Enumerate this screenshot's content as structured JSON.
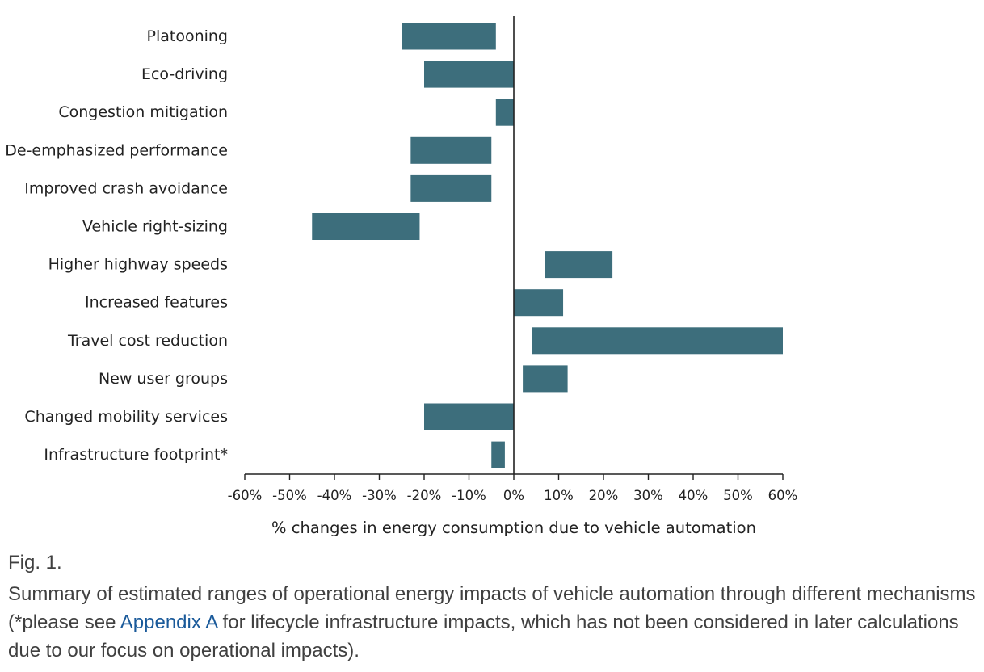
{
  "chart_data": {
    "type": "floating-bar",
    "orientation": "horizontal",
    "categories": [
      "Platooning",
      "Eco-driving",
      "Congestion mitigation",
      "De-emphasized performance",
      "Improved crash avoidance",
      "Vehicle right-sizing",
      "Higher highway speeds",
      "Increased features",
      "Travel cost reduction",
      "New user groups",
      "Changed mobility services",
      "Infrastructure  footprint*"
    ],
    "ranges": [
      [
        -25,
        -4
      ],
      [
        -20,
        0
      ],
      [
        -4,
        0
      ],
      [
        -23,
        -5
      ],
      [
        -23,
        -5
      ],
      [
        -45,
        -21
      ],
      [
        7,
        22
      ],
      [
        0,
        11
      ],
      [
        4,
        60
      ],
      [
        2,
        12
      ],
      [
        -20,
        0
      ],
      [
        -5,
        -2
      ]
    ],
    "xlim": [
      -60,
      60
    ],
    "xticks": [
      -60,
      -50,
      -40,
      -30,
      -20,
      -10,
      0,
      10,
      20,
      30,
      40,
      50,
      60
    ],
    "xtick_labels": [
      "-60%",
      "-50%",
      "-40%",
      "-30%",
      "-20%",
      "-10%",
      "0%",
      "10%",
      "20%",
      "30%",
      "40%",
      "50%",
      "60%"
    ],
    "xlabel": "% changes in energy consumption due to vehicle automation",
    "bar_color": "#3d6e7c",
    "grid": false
  },
  "caption": {
    "fig_label": "Fig. 1.",
    "text_before_link": "Summary of estimated ranges of operational energy impacts of vehicle automation through different mechanisms (",
    "asterisk": "*",
    "text_please": "please see ",
    "link_text": "Appendix A",
    "text_after_link": " for lifecycle infrastructure impacts, which has not been considered in later calculations due to our focus on operational impacts).",
    "link_color": "#1a5a9a"
  }
}
